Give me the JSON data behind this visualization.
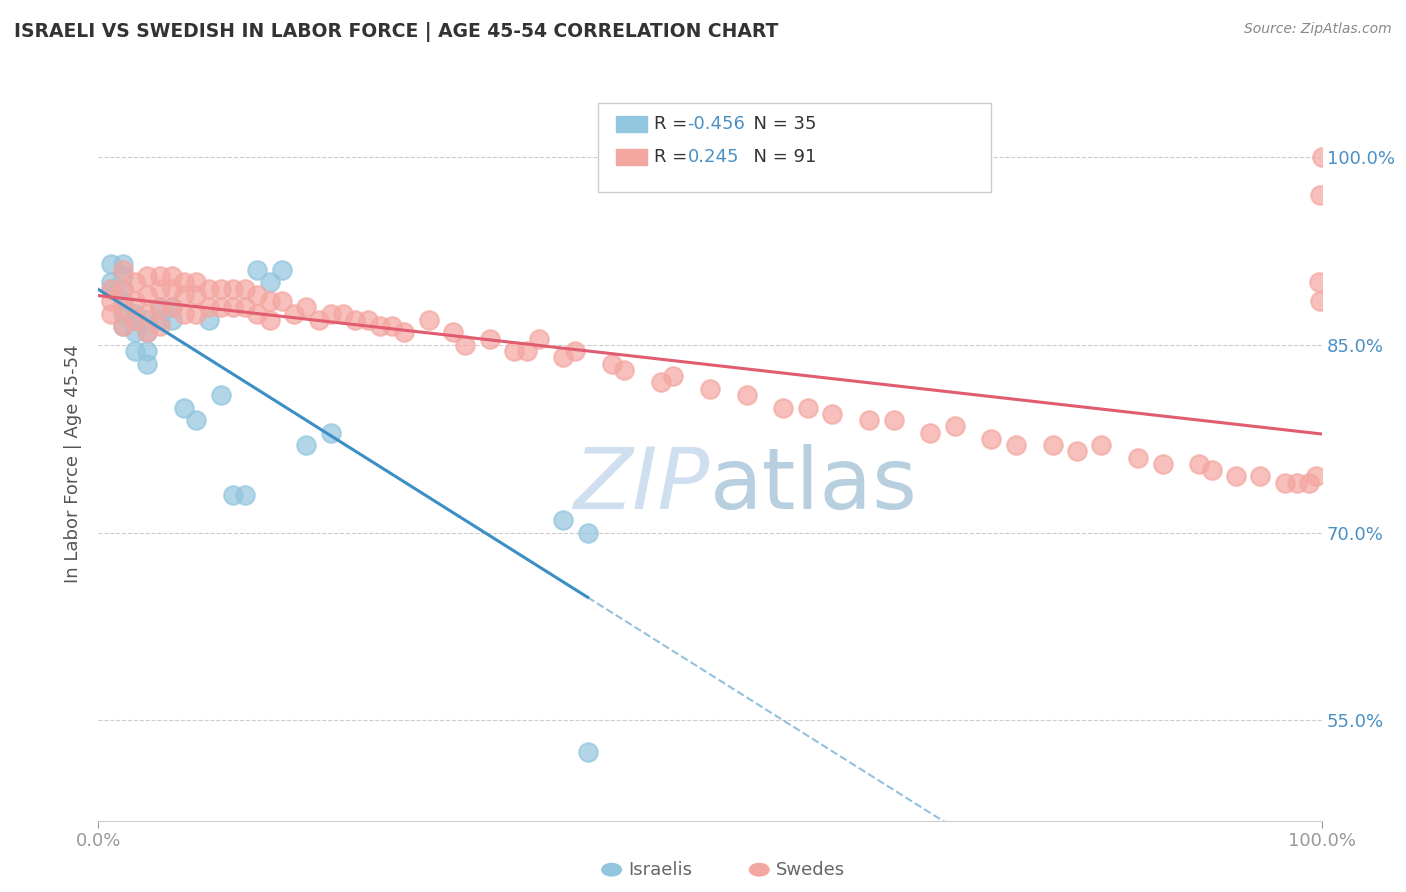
{
  "title": "ISRAELI VS SWEDISH IN LABOR FORCE | AGE 45-54 CORRELATION CHART",
  "source": "Source: ZipAtlas.com",
  "ylabel": "In Labor Force | Age 45-54",
  "xlim": [
    0.0,
    1.0
  ],
  "ylim": [
    0.47,
    1.04
  ],
  "yticks": [
    0.55,
    0.7,
    0.85,
    1.0
  ],
  "ytick_labels": [
    "55.0%",
    "70.0%",
    "85.0%",
    "100.0%"
  ],
  "xtick_labels": [
    "0.0%",
    "100.0%"
  ],
  "R_israeli": -0.456,
  "N_israeli": 35,
  "R_swedish": 0.245,
  "N_swedish": 91,
  "israeli_color": "#92c5de",
  "swedish_color": "#f4a6a0",
  "israeli_line_color": "#3b8fc4",
  "swedish_line_color": "#e05c6e",
  "background_color": "#ffffff",
  "watermark_color": "#d0dff0",
  "israeli_x": [
    0.01,
    0.01,
    0.01,
    0.02,
    0.02,
    0.02,
    0.02,
    0.02,
    0.02,
    0.03,
    0.03,
    0.03,
    0.03,
    0.04,
    0.04,
    0.04,
    0.04,
    0.05,
    0.05,
    0.06,
    0.06,
    0.07,
    0.08,
    0.09,
    0.1,
    0.11,
    0.12,
    0.13,
    0.14,
    0.15,
    0.17,
    0.19,
    0.38,
    0.4,
    0.4
  ],
  "israeli_y": [
    0.915,
    0.9,
    0.895,
    0.915,
    0.905,
    0.895,
    0.885,
    0.875,
    0.865,
    0.875,
    0.87,
    0.86,
    0.845,
    0.87,
    0.86,
    0.845,
    0.835,
    0.88,
    0.87,
    0.88,
    0.87,
    0.8,
    0.79,
    0.87,
    0.81,
    0.73,
    0.73,
    0.91,
    0.9,
    0.91,
    0.77,
    0.78,
    0.71,
    0.7,
    0.525
  ],
  "swedish_x": [
    0.01,
    0.01,
    0.01,
    0.02,
    0.02,
    0.02,
    0.02,
    0.03,
    0.03,
    0.03,
    0.04,
    0.04,
    0.04,
    0.04,
    0.05,
    0.05,
    0.05,
    0.05,
    0.06,
    0.06,
    0.06,
    0.07,
    0.07,
    0.07,
    0.08,
    0.08,
    0.08,
    0.09,
    0.09,
    0.1,
    0.1,
    0.11,
    0.11,
    0.12,
    0.12,
    0.13,
    0.13,
    0.14,
    0.14,
    0.15,
    0.16,
    0.17,
    0.18,
    0.19,
    0.2,
    0.21,
    0.22,
    0.23,
    0.24,
    0.25,
    0.27,
    0.29,
    0.3,
    0.32,
    0.34,
    0.35,
    0.36,
    0.38,
    0.39,
    0.42,
    0.43,
    0.46,
    0.47,
    0.5,
    0.53,
    0.56,
    0.58,
    0.6,
    0.63,
    0.65,
    0.68,
    0.7,
    0.73,
    0.75,
    0.78,
    0.8,
    0.82,
    0.85,
    0.87,
    0.9,
    0.91,
    0.93,
    0.95,
    0.97,
    0.98,
    0.99,
    0.995,
    0.998,
    0.999,
    0.999,
    1.0
  ],
  "swedish_y": [
    0.895,
    0.885,
    0.875,
    0.91,
    0.895,
    0.88,
    0.865,
    0.9,
    0.885,
    0.87,
    0.905,
    0.89,
    0.875,
    0.86,
    0.905,
    0.895,
    0.88,
    0.865,
    0.905,
    0.895,
    0.88,
    0.9,
    0.89,
    0.875,
    0.9,
    0.89,
    0.875,
    0.895,
    0.88,
    0.895,
    0.88,
    0.895,
    0.88,
    0.895,
    0.88,
    0.89,
    0.875,
    0.885,
    0.87,
    0.885,
    0.875,
    0.88,
    0.87,
    0.875,
    0.875,
    0.87,
    0.87,
    0.865,
    0.865,
    0.86,
    0.87,
    0.86,
    0.85,
    0.855,
    0.845,
    0.845,
    0.855,
    0.84,
    0.845,
    0.835,
    0.83,
    0.82,
    0.825,
    0.815,
    0.81,
    0.8,
    0.8,
    0.795,
    0.79,
    0.79,
    0.78,
    0.785,
    0.775,
    0.77,
    0.77,
    0.765,
    0.77,
    0.76,
    0.755,
    0.755,
    0.75,
    0.745,
    0.745,
    0.74,
    0.74,
    0.74,
    0.745,
    0.9,
    0.885,
    0.97,
    1.0
  ]
}
